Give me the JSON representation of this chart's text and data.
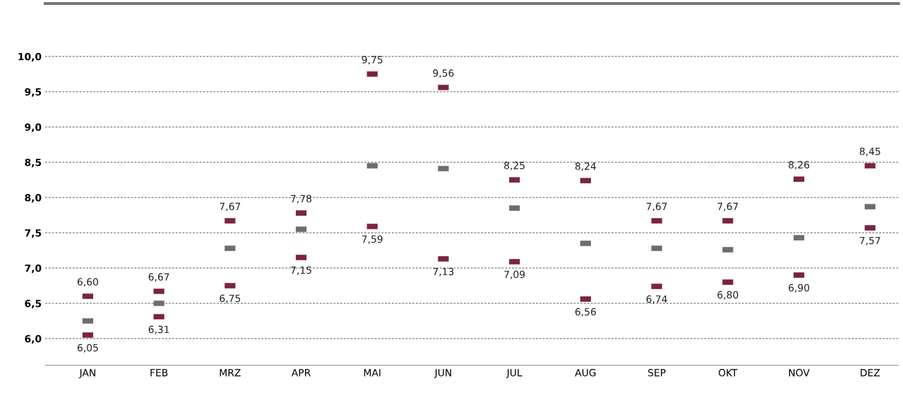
{
  "chart_data": {
    "type": "scatter",
    "categories": [
      "JAN",
      "FEB",
      "MRZ",
      "APR",
      "MAI",
      "JUN",
      "JUL",
      "AUG",
      "SEP",
      "OKT",
      "NOV",
      "DEZ"
    ],
    "series": [
      {
        "color": "#7b2340",
        "values": [
          6.6,
          6.67,
          7.67,
          7.78,
          9.75,
          9.56,
          8.25,
          8.24,
          7.67,
          7.67,
          8.26,
          8.45
        ],
        "value_labels": [
          "6,60",
          "6,67",
          "7,67",
          "7,78",
          "9,75",
          "9,56",
          "8,25",
          "8,24",
          "7,67",
          "7,67",
          "8,26",
          "8,45"
        ]
      },
      {
        "color": "#6d6d6d",
        "values": [
          6.25,
          6.5,
          7.28,
          7.55,
          8.45,
          8.41,
          7.85,
          7.35,
          7.28,
          7.26,
          7.43,
          7.87
        ]
      },
      {
        "color": "#7b2340",
        "values": [
          6.05,
          6.31,
          6.75,
          7.15,
          7.59,
          7.13,
          7.09,
          6.56,
          6.74,
          6.8,
          6.9,
          7.57
        ],
        "value_labels": [
          "6,05",
          "6,31",
          "6,75",
          "7,15",
          "7,59",
          "7,13",
          "7,09",
          "6,56",
          "6,74",
          "6,80",
          "6,90",
          "7,57"
        ]
      }
    ],
    "ylim": [
      5.62,
      10.75
    ],
    "yticks": [
      {
        "value": 6.0,
        "label": "6,0"
      },
      {
        "value": 6.5,
        "label": "6,5"
      },
      {
        "value": 7.0,
        "label": "7,0"
      },
      {
        "value": 7.5,
        "label": "7,5"
      },
      {
        "value": 8.0,
        "label": "8,0"
      },
      {
        "value": 8.5,
        "label": "8,5"
      },
      {
        "value": 9.0,
        "label": "9,0"
      },
      {
        "value": 9.5,
        "label": "9,5"
      },
      {
        "value": 10.0,
        "label": "10,0"
      }
    ],
    "grid": "y",
    "marker": "square",
    "legend": false
  }
}
